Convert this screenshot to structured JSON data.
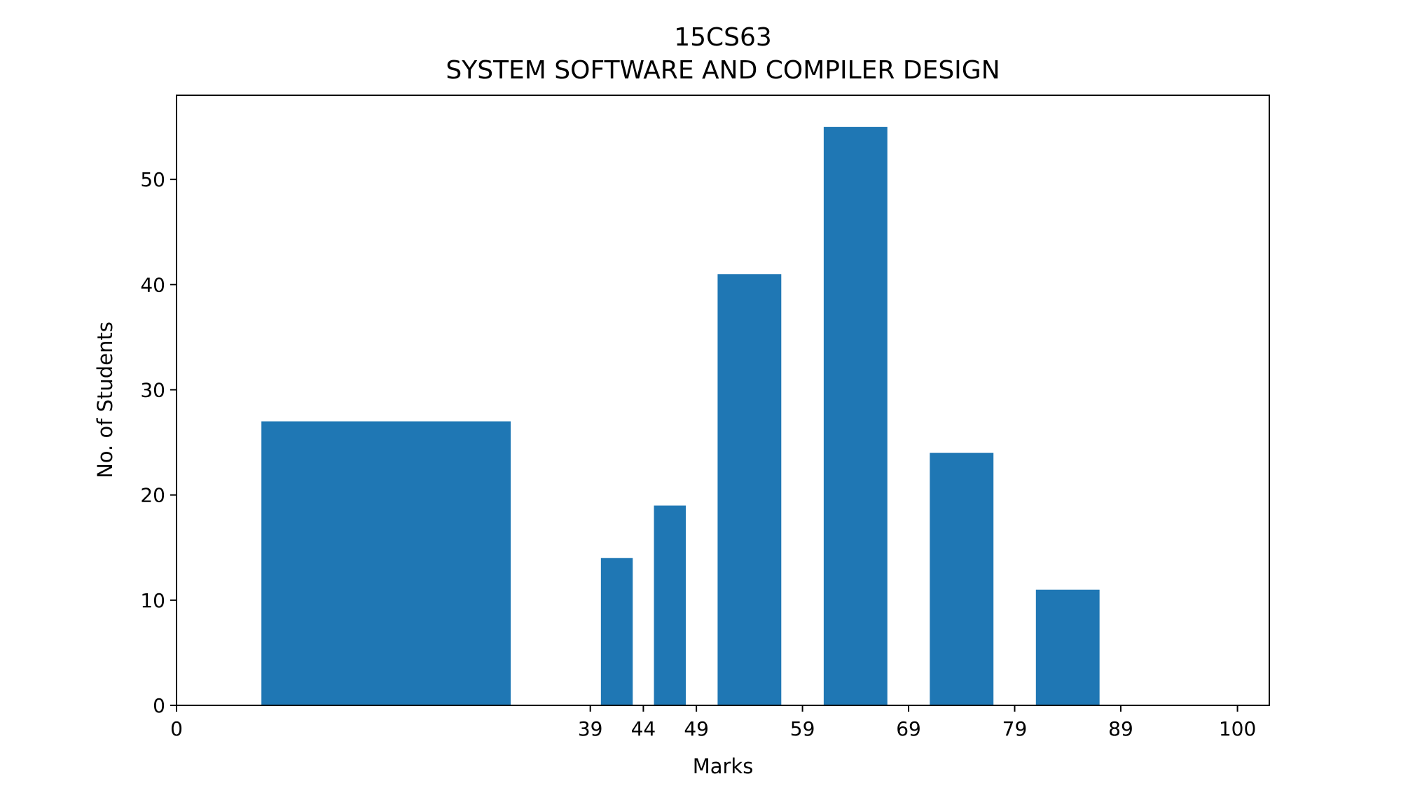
{
  "chart_data": {
    "type": "bar",
    "title": "15CS63",
    "subtitle": "SYSTEM SOFTWARE AND COMPILER DESIGN",
    "xlabel": "Marks",
    "ylabel": "No. of Students",
    "xlim": [
      0,
      103
    ],
    "ylim": [
      0,
      58
    ],
    "xticks": [
      0,
      39,
      44,
      49,
      59,
      69,
      79,
      89,
      100
    ],
    "yticks": [
      0,
      10,
      20,
      30,
      40,
      50
    ],
    "bar_color": "#1f77b4",
    "grid": false,
    "bars": [
      {
        "x_start": 8,
        "x_end": 31.5,
        "value": 27
      },
      {
        "x_start": 40,
        "x_end": 43,
        "value": 14
      },
      {
        "x_start": 45,
        "x_end": 48,
        "value": 19
      },
      {
        "x_start": 51,
        "x_end": 57,
        "value": 41
      },
      {
        "x_start": 61,
        "x_end": 67,
        "value": 55
      },
      {
        "x_start": 71,
        "x_end": 77,
        "value": 24
      },
      {
        "x_start": 81,
        "x_end": 87,
        "value": 11
      }
    ]
  }
}
